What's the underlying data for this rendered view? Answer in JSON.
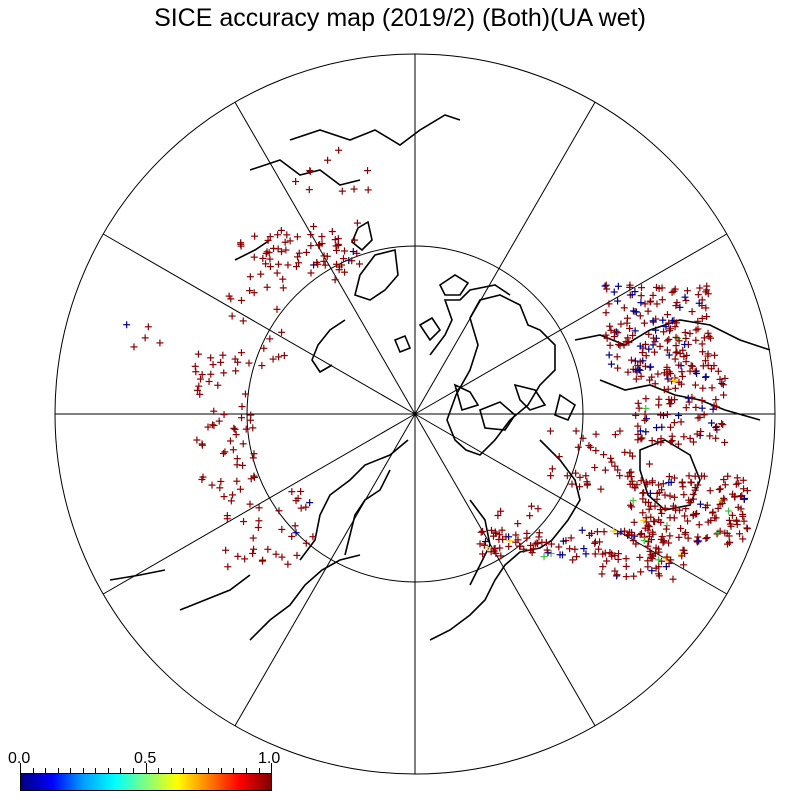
{
  "title": "SICE accuracy map (2019/2) (Both)(UA wet)",
  "colorbar": {
    "labels": [
      "0.0",
      "0.5",
      "1.0"
    ],
    "range": [
      0.0,
      1.0
    ],
    "colors": [
      "#000080",
      "#0000ff",
      "#00a0ff",
      "#00ffff",
      "#80ff80",
      "#ffff00",
      "#ff8000",
      "#ff0000",
      "#800000"
    ]
  },
  "map": {
    "projection": "north polar stereographic",
    "meridian_spokes": 12,
    "latitude_circles": 2,
    "coastline_color": "#000000",
    "marker": "+",
    "marker_colors": {
      "high": "#8b0000",
      "low": "#00008b",
      "mid_green": "#40c040",
      "mid_yellow": "#ffd000"
    }
  }
}
